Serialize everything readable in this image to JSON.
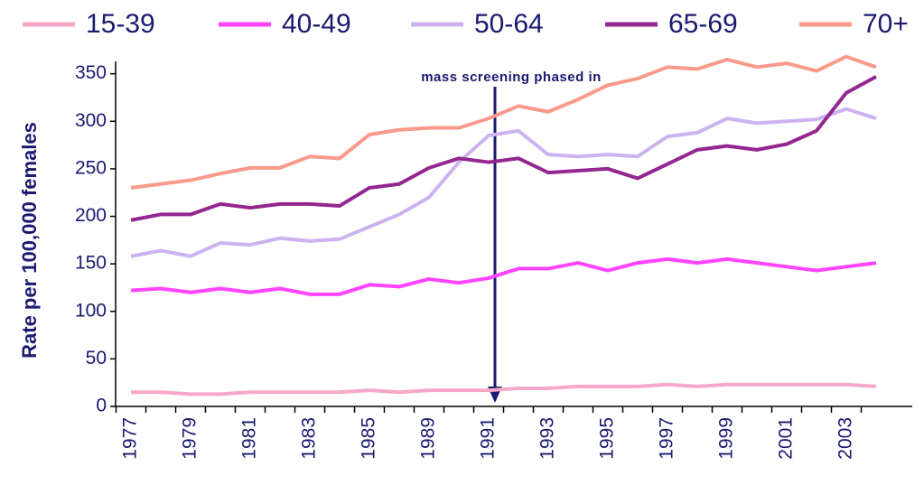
{
  "chart_data": {
    "type": "line",
    "y_label": "Rate per 100,000 females",
    "annotation": "mass screening phased in",
    "categories": [
      "1977",
      null,
      "1979",
      null,
      "1981",
      null,
      "1983",
      null,
      "1985",
      null,
      "1989",
      null,
      "1991",
      null,
      "1993",
      null,
      "1995",
      null,
      "1997",
      null,
      "1999",
      null,
      "2001",
      null,
      "2003",
      null
    ],
    "series": [
      {
        "name": "15-39",
        "color": "#f7a8c8",
        "values": [
          15,
          15,
          13,
          13,
          15,
          15,
          15,
          15,
          17,
          15,
          17,
          17,
          17,
          19,
          19,
          21,
          21,
          21,
          23,
          21,
          23,
          23,
          23,
          23,
          23,
          21
        ]
      },
      {
        "name": "40-49",
        "color": "#ff44ff",
        "values": [
          122,
          124,
          120,
          124,
          120,
          124,
          118,
          118,
          128,
          126,
          134,
          130,
          135,
          145,
          145,
          151,
          143,
          151,
          155,
          151,
          155,
          151,
          147,
          143,
          147,
          151
        ]
      },
      {
        "name": "50-64",
        "color": "#ccb3f0",
        "values": [
          158,
          164,
          158,
          172,
          170,
          177,
          174,
          176,
          189,
          202,
          220,
          257,
          285,
          290,
          265,
          263,
          265,
          263,
          284,
          288,
          303,
          298,
          300,
          302,
          313,
          303
        ]
      },
      {
        "name": "65-69",
        "color": "#93278f",
        "values": [
          196,
          202,
          202,
          213,
          209,
          213,
          213,
          211,
          230,
          234,
          251,
          261,
          257,
          261,
          246,
          248,
          250,
          240,
          255,
          270,
          274,
          270,
          276,
          290,
          330,
          347
        ]
      },
      {
        "name": "70+",
        "color": "#f99a8a",
        "values": [
          230,
          234,
          238,
          245,
          251,
          251,
          263,
          261,
          286,
          291,
          293,
          293,
          303,
          316,
          310,
          323,
          338,
          345,
          357,
          355,
          365,
          357,
          361,
          353,
          368,
          357
        ]
      }
    ],
    "ylim": [
      0,
      363
    ],
    "yticks": [
      0,
      50,
      100,
      150,
      200,
      250,
      300,
      350
    ]
  }
}
